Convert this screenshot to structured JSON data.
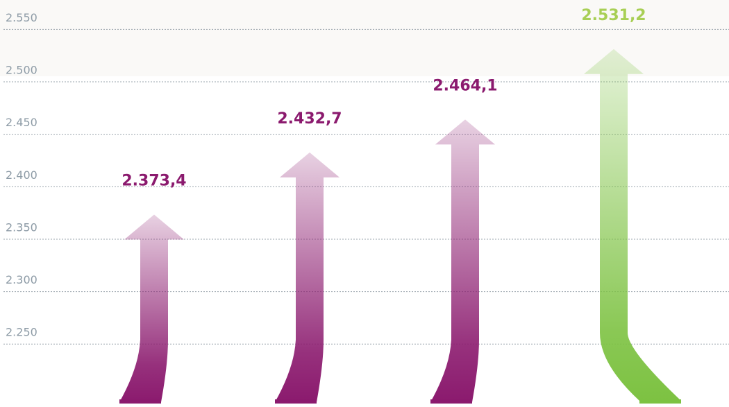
{
  "chart_data": {
    "type": "arrow-bar",
    "values": [
      2373.4,
      2432.7,
      2464.1,
      2531.2
    ],
    "value_labels": [
      "2.373,4",
      "2.432,7",
      "2.464,1",
      "2.531,2"
    ],
    "colors": [
      "#8b1a6e",
      "#8b1a6e",
      "#8b1a6e",
      "#7dc242"
    ],
    "ylim": [
      2190,
      2578
    ],
    "yticks": [
      {
        "value": 2250,
        "label": "2.250"
      },
      {
        "value": 2300,
        "label": "2.300"
      },
      {
        "value": 2350,
        "label": "2.350"
      },
      {
        "value": 2400,
        "label": "2.400"
      },
      {
        "value": 2450,
        "label": "2.450"
      },
      {
        "value": 2500,
        "label": "2.500"
      },
      {
        "value": 2550,
        "label": "2.550"
      }
    ],
    "grid": true
  }
}
